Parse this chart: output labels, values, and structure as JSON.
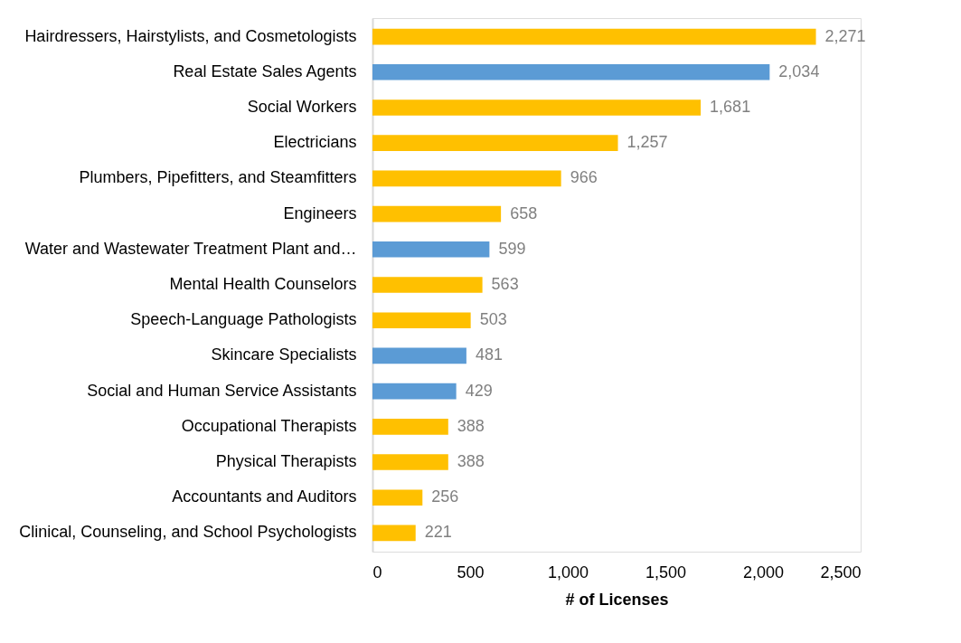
{
  "chart_data": {
    "type": "bar",
    "orientation": "horizontal",
    "xlabel": "# of Licenses",
    "categories": [
      "Hairdressers, Hairstylists, and Cosmetologists",
      "Real Estate Sales Agents",
      "Social Workers",
      "Electricians",
      "Plumbers, Pipefitters, and Steamfitters",
      "Engineers",
      "Water and Wastewater Treatment Plant and…",
      "Mental Health Counselors",
      "Speech-Language Pathologists",
      "Skincare Specialists",
      "Social and Human Service Assistants",
      "Occupational Therapists",
      "Physical Therapists",
      "Accountants and Auditors",
      "Clinical, Counseling, and School Psychologists"
    ],
    "values": [
      2271,
      2034,
      1681,
      1257,
      966,
      658,
      599,
      563,
      503,
      481,
      429,
      388,
      388,
      256,
      221
    ],
    "colors": [
      "#ffc000",
      "#5b9bd5",
      "#ffc000",
      "#ffc000",
      "#ffc000",
      "#ffc000",
      "#5b9bd5",
      "#ffc000",
      "#ffc000",
      "#5b9bd5",
      "#5b9bd5",
      "#ffc000",
      "#ffc000",
      "#ffc000",
      "#ffc000"
    ],
    "value_labels": [
      "2,271",
      "2,034",
      "1,681",
      "1,257",
      "966",
      "658",
      "599",
      "563",
      "503",
      "481",
      "429",
      "388",
      "388",
      "256",
      "221"
    ],
    "xlim": [
      0,
      2500
    ],
    "xticks": [
      0,
      500,
      {
        "value": 1000,
        "label": "1,000"
      },
      {
        "value": 1500,
        "label": "1,500"
      },
      {
        "value": 2000,
        "label": "2,000"
      },
      {
        "value": 2500,
        "label": "2,500"
      }
    ],
    "grid": false
  }
}
